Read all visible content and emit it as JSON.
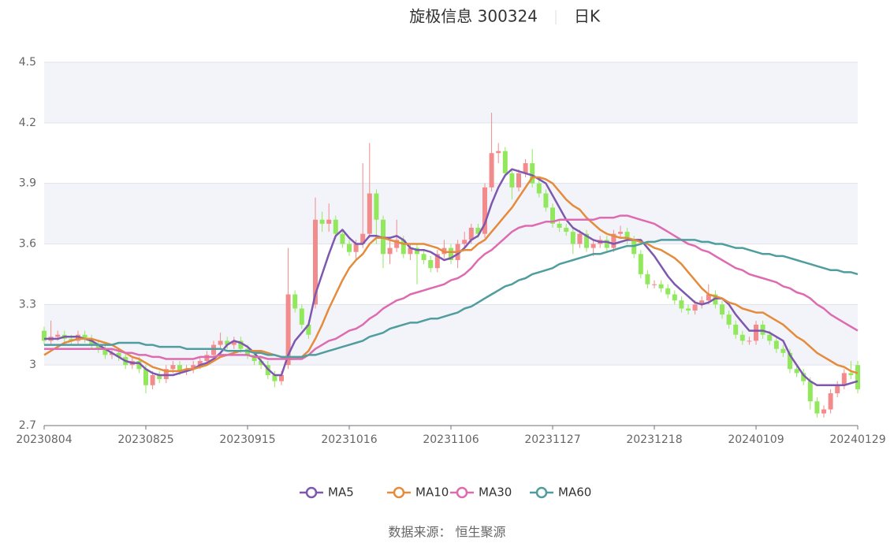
{
  "chart_data": {
    "type": "candlestick",
    "title": "旋极信息 300324",
    "period": "日K",
    "source": "数据来源： 恒生聚源",
    "categories": [
      "20230804",
      null,
      null,
      null,
      null,
      null,
      null,
      null,
      null,
      null,
      null,
      null,
      null,
      null,
      null,
      "20230825",
      null,
      null,
      null,
      null,
      null,
      null,
      null,
      null,
      null,
      null,
      null,
      null,
      null,
      null,
      "20230915",
      null,
      null,
      null,
      null,
      null,
      null,
      null,
      null,
      null,
      null,
      null,
      null,
      null,
      null,
      "20231016",
      null,
      null,
      null,
      null,
      null,
      null,
      null,
      null,
      null,
      null,
      null,
      null,
      null,
      null,
      "20231106",
      null,
      null,
      null,
      null,
      null,
      null,
      null,
      null,
      null,
      null,
      null,
      null,
      null,
      null,
      "20231127",
      null,
      null,
      null,
      null,
      null,
      null,
      null,
      null,
      null,
      null,
      null,
      null,
      null,
      null,
      "20231218",
      null,
      null,
      null,
      null,
      null,
      null,
      null,
      null,
      null,
      null,
      null,
      null,
      null,
      null,
      "20240109",
      null,
      null,
      null,
      null,
      null,
      null,
      null,
      null,
      null,
      null,
      null,
      null,
      null,
      null,
      "20240129"
    ],
    "open": [
      3.17,
      3.12,
      3.14,
      3.15,
      3.13,
      3.12,
      3.15,
      3.13,
      3.1,
      3.08,
      3.05,
      3.06,
      3.04,
      3.0,
      3.02,
      2.98,
      2.9,
      2.95,
      2.93,
      2.98,
      3.0,
      2.97,
      2.98,
      3.0,
      3.02,
      3.05,
      3.1,
      3.12,
      3.1,
      3.12,
      3.08,
      3.05,
      3.02,
      3.0,
      2.95,
      2.92,
      3.0,
      3.35,
      3.28,
      3.2,
      3.3,
      3.72,
      3.7,
      3.72,
      3.65,
      3.6,
      3.56,
      3.6,
      3.65,
      3.85,
      3.72,
      3.55,
      3.58,
      3.62,
      3.55,
      3.58,
      3.55,
      3.52,
      3.48,
      3.55,
      3.58,
      3.52,
      3.6,
      3.62,
      3.68,
      3.65,
      3.88,
      4.05,
      4.06,
      3.95,
      3.88,
      3.95,
      4.0,
      3.9,
      3.85,
      3.78,
      3.7,
      3.68,
      3.66,
      3.6,
      3.65,
      3.58,
      3.6,
      3.62,
      3.58,
      3.65,
      3.66,
      3.62,
      3.55,
      3.45,
      3.4,
      3.4,
      3.38,
      3.35,
      3.32,
      3.28,
      3.27,
      3.3,
      3.32,
      3.35,
      3.3,
      3.25,
      3.2,
      3.15,
      3.12,
      3.12,
      3.2,
      3.15,
      3.12,
      3.08,
      3.06,
      2.98,
      2.96,
      2.92,
      2.82,
      2.76,
      2.78,
      2.86,
      2.9,
      2.96,
      3.0
    ],
    "close": [
      3.12,
      3.14,
      3.15,
      3.13,
      3.12,
      3.15,
      3.13,
      3.1,
      3.08,
      3.05,
      3.06,
      3.04,
      3.0,
      3.02,
      2.98,
      2.9,
      2.95,
      2.93,
      2.98,
      3.0,
      2.97,
      2.98,
      3.0,
      3.02,
      3.05,
      3.1,
      3.12,
      3.1,
      3.12,
      3.08,
      3.05,
      3.02,
      3.0,
      2.95,
      2.92,
      2.95,
      3.35,
      3.28,
      3.2,
      3.15,
      3.72,
      3.7,
      3.72,
      3.65,
      3.6,
      3.56,
      3.6,
      3.65,
      3.85,
      3.72,
      3.55,
      3.58,
      3.62,
      3.55,
      3.58,
      3.55,
      3.52,
      3.48,
      3.55,
      3.58,
      3.52,
      3.6,
      3.62,
      3.68,
      3.65,
      3.88,
      4.05,
      4.06,
      3.95,
      3.88,
      3.95,
      4.0,
      3.9,
      3.85,
      3.78,
      3.7,
      3.68,
      3.66,
      3.6,
      3.65,
      3.58,
      3.6,
      3.62,
      3.58,
      3.65,
      3.66,
      3.62,
      3.55,
      3.45,
      3.4,
      3.4,
      3.38,
      3.35,
      3.32,
      3.28,
      3.27,
      3.3,
      3.32,
      3.35,
      3.3,
      3.25,
      3.2,
      3.15,
      3.12,
      3.12,
      3.2,
      3.15,
      3.12,
      3.08,
      3.06,
      2.98,
      2.96,
      2.92,
      2.82,
      2.76,
      2.78,
      2.86,
      2.9,
      2.96,
      2.95,
      2.88
    ],
    "high": [
      3.19,
      3.22,
      3.17,
      3.17,
      3.15,
      3.17,
      3.17,
      3.15,
      3.12,
      3.1,
      3.08,
      3.08,
      3.06,
      3.04,
      3.04,
      3.0,
      2.97,
      2.97,
      3.0,
      3.02,
      3.02,
      3.0,
      3.02,
      3.04,
      3.07,
      3.12,
      3.16,
      3.14,
      3.14,
      3.14,
      3.1,
      3.07,
      3.04,
      3.02,
      2.97,
      2.97,
      3.58,
      3.37,
      3.3,
      3.22,
      3.83,
      3.76,
      3.8,
      3.74,
      3.67,
      3.62,
      3.62,
      4.0,
      4.1,
      3.87,
      3.74,
      3.62,
      3.72,
      3.64,
      3.6,
      3.6,
      3.57,
      3.54,
      3.57,
      3.62,
      3.6,
      3.62,
      3.66,
      3.7,
      3.7,
      3.9,
      4.25,
      4.1,
      4.08,
      3.97,
      3.97,
      4.02,
      4.07,
      3.92,
      3.87,
      3.8,
      3.72,
      3.7,
      3.68,
      3.67,
      3.67,
      3.62,
      3.64,
      3.64,
      3.67,
      3.69,
      3.68,
      3.64,
      3.57,
      3.47,
      3.42,
      3.42,
      3.4,
      3.37,
      3.34,
      3.3,
      3.32,
      3.34,
      3.4,
      3.37,
      3.32,
      3.27,
      3.22,
      3.17,
      3.14,
      3.22,
      3.22,
      3.17,
      3.14,
      3.1,
      3.08,
      3.0,
      2.98,
      2.94,
      2.84,
      2.8,
      2.88,
      2.92,
      2.98,
      3.02,
      3.02
    ],
    "low": [
      3.1,
      3.1,
      3.12,
      3.11,
      3.1,
      3.1,
      3.11,
      3.08,
      3.06,
      3.03,
      3.03,
      3.02,
      2.98,
      2.98,
      2.96,
      2.86,
      2.88,
      2.91,
      2.91,
      2.96,
      2.95,
      2.95,
      2.96,
      2.98,
      3.0,
      3.03,
      3.08,
      3.08,
      3.08,
      3.06,
      3.03,
      3.0,
      2.98,
      2.93,
      2.89,
      2.9,
      2.98,
      3.26,
      3.18,
      3.13,
      3.28,
      3.66,
      3.66,
      3.63,
      3.58,
      3.54,
      3.52,
      3.58,
      3.63,
      3.6,
      3.48,
      3.5,
      3.56,
      3.53,
      3.52,
      3.4,
      3.5,
      3.46,
      3.46,
      3.53,
      3.5,
      3.48,
      3.58,
      3.6,
      3.63,
      3.63,
      3.86,
      4.0,
      3.93,
      3.82,
      3.86,
      3.93,
      3.88,
      3.83,
      3.76,
      3.68,
      3.66,
      3.64,
      3.55,
      3.58,
      3.56,
      3.54,
      3.58,
      3.56,
      3.56,
      3.63,
      3.6,
      3.53,
      3.43,
      3.38,
      3.38,
      3.36,
      3.33,
      3.3,
      3.26,
      3.25,
      3.25,
      3.28,
      3.3,
      3.28,
      3.23,
      3.18,
      3.13,
      3.1,
      3.1,
      3.1,
      3.13,
      3.1,
      3.06,
      3.04,
      2.96,
      2.94,
      2.9,
      2.78,
      2.74,
      2.74,
      2.76,
      2.84,
      2.88,
      2.93,
      2.86
    ],
    "up_color": "#f28b8b",
    "down_color": "#92e85c",
    "series": [
      {
        "name": "MA5",
        "color": "#7e57ae",
        "values": [
          3.13,
          3.13,
          3.13,
          3.14,
          3.14,
          3.14,
          3.13,
          3.12,
          3.1,
          3.08,
          3.06,
          3.04,
          3.02,
          3.01,
          3.01,
          2.98,
          2.96,
          2.95,
          2.95,
          2.95,
          2.96,
          2.97,
          2.98,
          3.0,
          3.01,
          3.03,
          3.06,
          3.1,
          3.12,
          3.11,
          3.09,
          3.06,
          3.02,
          2.98,
          2.95,
          2.95,
          3.05,
          3.12,
          3.16,
          3.2,
          3.35,
          3.45,
          3.55,
          3.64,
          3.67,
          3.63,
          3.6,
          3.6,
          3.64,
          3.64,
          3.63,
          3.63,
          3.64,
          3.62,
          3.58,
          3.57,
          3.57,
          3.56,
          3.54,
          3.52,
          3.53,
          3.55,
          3.58,
          3.62,
          3.64,
          3.7,
          3.8,
          3.88,
          3.94,
          3.97,
          3.96,
          3.95,
          3.94,
          3.92,
          3.9,
          3.84,
          3.78,
          3.72,
          3.68,
          3.66,
          3.64,
          3.62,
          3.61,
          3.61,
          3.6,
          3.61,
          3.62,
          3.62,
          3.62,
          3.58,
          3.54,
          3.49,
          3.44,
          3.4,
          3.37,
          3.34,
          3.31,
          3.3,
          3.31,
          3.33,
          3.33,
          3.3,
          3.25,
          3.21,
          3.17,
          3.17,
          3.17,
          3.16,
          3.14,
          3.12,
          3.05,
          3.0,
          2.95,
          2.92,
          2.9,
          2.9,
          2.9,
          2.9,
          2.9,
          2.91,
          2.92
        ]
      },
      {
        "name": "MA10",
        "color": "#e48b3c",
        "values": [
          3.05,
          3.07,
          3.09,
          3.11,
          3.12,
          3.13,
          3.13,
          3.13,
          3.12,
          3.11,
          3.1,
          3.08,
          3.06,
          3.04,
          3.03,
          3.01,
          2.99,
          2.98,
          2.97,
          2.97,
          2.97,
          2.98,
          2.98,
          2.99,
          3.0,
          3.02,
          3.04,
          3.05,
          3.06,
          3.07,
          3.07,
          3.07,
          3.07,
          3.06,
          3.05,
          3.04,
          3.03,
          3.03,
          3.04,
          3.07,
          3.13,
          3.2,
          3.28,
          3.35,
          3.42,
          3.48,
          3.52,
          3.55,
          3.6,
          3.63,
          3.63,
          3.62,
          3.61,
          3.6,
          3.6,
          3.6,
          3.6,
          3.59,
          3.58,
          3.56,
          3.56,
          3.56,
          3.57,
          3.57,
          3.6,
          3.62,
          3.66,
          3.7,
          3.74,
          3.78,
          3.83,
          3.88,
          3.93,
          3.93,
          3.92,
          3.9,
          3.86,
          3.82,
          3.79,
          3.77,
          3.73,
          3.7,
          3.67,
          3.65,
          3.64,
          3.63,
          3.63,
          3.62,
          3.61,
          3.6,
          3.58,
          3.57,
          3.55,
          3.53,
          3.5,
          3.46,
          3.42,
          3.38,
          3.35,
          3.34,
          3.33,
          3.31,
          3.3,
          3.28,
          3.27,
          3.26,
          3.26,
          3.24,
          3.22,
          3.2,
          3.17,
          3.14,
          3.12,
          3.09,
          3.06,
          3.04,
          3.02,
          3.0,
          2.99,
          2.97,
          2.96
        ]
      },
      {
        "name": "MA30",
        "color": "#de6bb0",
        "values": [
          3.08,
          3.08,
          3.08,
          3.08,
          3.08,
          3.08,
          3.08,
          3.08,
          3.08,
          3.08,
          3.08,
          3.07,
          3.06,
          3.06,
          3.05,
          3.05,
          3.04,
          3.04,
          3.03,
          3.03,
          3.03,
          3.03,
          3.03,
          3.04,
          3.04,
          3.04,
          3.05,
          3.05,
          3.05,
          3.05,
          3.05,
          3.04,
          3.04,
          3.03,
          3.03,
          3.03,
          3.03,
          3.03,
          3.03,
          3.05,
          3.08,
          3.1,
          3.12,
          3.13,
          3.15,
          3.17,
          3.18,
          3.2,
          3.23,
          3.25,
          3.28,
          3.3,
          3.32,
          3.33,
          3.35,
          3.36,
          3.37,
          3.38,
          3.39,
          3.4,
          3.42,
          3.43,
          3.45,
          3.48,
          3.52,
          3.55,
          3.57,
          3.6,
          3.63,
          3.66,
          3.68,
          3.69,
          3.69,
          3.7,
          3.71,
          3.71,
          3.72,
          3.72,
          3.72,
          3.72,
          3.72,
          3.72,
          3.73,
          3.73,
          3.73,
          3.74,
          3.74,
          3.73,
          3.72,
          3.71,
          3.7,
          3.68,
          3.66,
          3.64,
          3.62,
          3.6,
          3.59,
          3.57,
          3.56,
          3.54,
          3.52,
          3.5,
          3.48,
          3.47,
          3.45,
          3.44,
          3.43,
          3.42,
          3.41,
          3.39,
          3.38,
          3.36,
          3.35,
          3.33,
          3.3,
          3.28,
          3.25,
          3.23,
          3.21,
          3.19,
          3.17
        ]
      },
      {
        "name": "MA60",
        "color": "#4f9d9e",
        "values": [
          3.1,
          3.1,
          3.1,
          3.1,
          3.1,
          3.1,
          3.1,
          3.1,
          3.1,
          3.1,
          3.1,
          3.11,
          3.11,
          3.11,
          3.11,
          3.1,
          3.1,
          3.09,
          3.09,
          3.09,
          3.09,
          3.08,
          3.08,
          3.08,
          3.08,
          3.08,
          3.08,
          3.07,
          3.07,
          3.07,
          3.07,
          3.06,
          3.06,
          3.05,
          3.05,
          3.04,
          3.04,
          3.04,
          3.04,
          3.05,
          3.05,
          3.06,
          3.07,
          3.08,
          3.09,
          3.1,
          3.11,
          3.12,
          3.14,
          3.15,
          3.16,
          3.18,
          3.19,
          3.2,
          3.21,
          3.21,
          3.22,
          3.23,
          3.23,
          3.24,
          3.25,
          3.26,
          3.28,
          3.29,
          3.31,
          3.33,
          3.35,
          3.37,
          3.39,
          3.4,
          3.42,
          3.43,
          3.45,
          3.46,
          3.47,
          3.48,
          3.5,
          3.51,
          3.52,
          3.53,
          3.54,
          3.55,
          3.55,
          3.56,
          3.57,
          3.58,
          3.59,
          3.59,
          3.6,
          3.61,
          3.61,
          3.62,
          3.62,
          3.62,
          3.62,
          3.62,
          3.62,
          3.61,
          3.61,
          3.6,
          3.6,
          3.59,
          3.58,
          3.58,
          3.57,
          3.56,
          3.55,
          3.55,
          3.54,
          3.54,
          3.53,
          3.52,
          3.51,
          3.5,
          3.49,
          3.48,
          3.47,
          3.47,
          3.46,
          3.46,
          3.45
        ]
      }
    ],
    "ylim": [
      2.7,
      4.5
    ],
    "yticks": [
      2.7,
      3,
      3.3,
      3.6,
      3.9,
      4.2,
      4.5
    ],
    "grid": true,
    "band_color": "#f3f4f9"
  }
}
